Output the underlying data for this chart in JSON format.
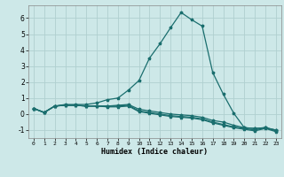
{
  "title": "",
  "xlabel": "Humidex (Indice chaleur)",
  "bg_color": "#cde8e8",
  "grid_color": "#b0d0d0",
  "line_color": "#1a6e6e",
  "xlim": [
    -0.5,
    23.5
  ],
  "ylim": [
    -1.5,
    6.8
  ],
  "xticks": [
    0,
    1,
    2,
    3,
    4,
    5,
    6,
    7,
    8,
    9,
    10,
    11,
    12,
    13,
    14,
    15,
    16,
    17,
    18,
    19,
    20,
    21,
    22,
    23
  ],
  "yticks": [
    -1,
    0,
    1,
    2,
    3,
    4,
    5,
    6
  ],
  "series": [
    [
      0.35,
      0.1,
      0.5,
      0.6,
      0.6,
      0.6,
      0.7,
      0.9,
      1.0,
      1.5,
      2.1,
      3.5,
      4.4,
      5.4,
      6.35,
      5.9,
      5.5,
      2.6,
      1.25,
      0.05,
      -0.85,
      -0.9,
      -0.85,
      -1.0
    ],
    [
      0.35,
      0.1,
      0.5,
      0.55,
      0.55,
      0.5,
      0.5,
      0.5,
      0.55,
      0.6,
      0.3,
      0.2,
      0.1,
      0.0,
      -0.05,
      -0.1,
      -0.2,
      -0.4,
      -0.5,
      -0.7,
      -0.85,
      -0.9,
      -0.85,
      -1.0
    ],
    [
      0.35,
      0.1,
      0.5,
      0.55,
      0.55,
      0.5,
      0.5,
      0.5,
      0.5,
      0.55,
      0.2,
      0.1,
      0.0,
      -0.1,
      -0.15,
      -0.2,
      -0.3,
      -0.5,
      -0.65,
      -0.8,
      -0.9,
      -1.0,
      -0.85,
      -1.05
    ],
    [
      0.35,
      0.1,
      0.5,
      0.55,
      0.55,
      0.5,
      0.5,
      0.45,
      0.45,
      0.5,
      0.15,
      0.05,
      -0.05,
      -0.15,
      -0.2,
      -0.25,
      -0.35,
      -0.55,
      -0.7,
      -0.85,
      -0.95,
      -1.05,
      -0.9,
      -1.1
    ]
  ]
}
